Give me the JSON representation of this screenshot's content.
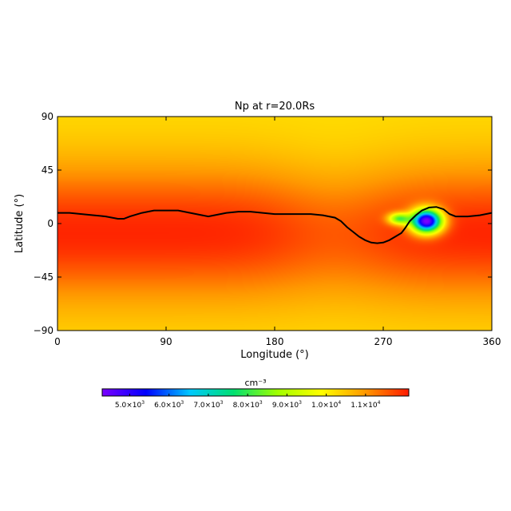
{
  "chart_data": {
    "type": "heatmap",
    "title": "Np at r=20.0Rs",
    "xlabel": "Longitude (°)",
    "ylabel": "Latitude (°)",
    "xlim": [
      0,
      360
    ],
    "ylim": [
      -90,
      90
    ],
    "xticks": [
      "0",
      "90",
      "180",
      "270",
      "360"
    ],
    "xtick_values": [
      0,
      90,
      180,
      270,
      360
    ],
    "yticks": [
      "90",
      "45",
      "0",
      "−45",
      "−90"
    ],
    "ytick_values": [
      90,
      45,
      0,
      -45,
      -90
    ],
    "colorbar": {
      "unit_label": "cm⁻³",
      "range": [
        4300,
        12100
      ],
      "tick_values": [
        5000,
        6000,
        7000,
        8000,
        9000,
        10000,
        11000
      ],
      "tick_labels": [
        {
          "mantissa": "5.0×10",
          "exp": "3"
        },
        {
          "mantissa": "6.0×10",
          "exp": "3"
        },
        {
          "mantissa": "7.0×10",
          "exp": "3"
        },
        {
          "mantissa": "8.0×10",
          "exp": "3"
        },
        {
          "mantissa": "9.0×10",
          "exp": "3"
        },
        {
          "mantissa": "1.0×10",
          "exp": "4"
        },
        {
          "mantissa": "1.1×10",
          "exp": "4"
        }
      ],
      "colors": [
        "#7a00ff",
        "#0000ff",
        "#00c8ff",
        "#00e070",
        "#a0ff00",
        "#ffff00",
        "#ff9900",
        "#ff1a00"
      ]
    },
    "background_field": {
      "peak_value": 12000,
      "pole_value": 10250,
      "peak_latitude": -8,
      "dip_center_longitude": 230,
      "dip_amount": 450
    },
    "anomalies": [
      {
        "longitude": 283,
        "latitude": 4,
        "min_value": 8600,
        "width_lon": 9,
        "width_lat": 5
      },
      {
        "longitude": 306,
        "latitude": 2,
        "min_value": 4300,
        "width_lon": 13,
        "width_lat": 10
      }
    ],
    "contour_line": {
      "color": "#000000",
      "points": [
        [
          0,
          9
        ],
        [
          10,
          9
        ],
        [
          20,
          8
        ],
        [
          30,
          7
        ],
        [
          40,
          6
        ],
        [
          50,
          4
        ],
        [
          55,
          4
        ],
        [
          60,
          6
        ],
        [
          70,
          9
        ],
        [
          80,
          11
        ],
        [
          90,
          11
        ],
        [
          100,
          11
        ],
        [
          110,
          9
        ],
        [
          120,
          7
        ],
        [
          125,
          6
        ],
        [
          130,
          7
        ],
        [
          140,
          9
        ],
        [
          150,
          10
        ],
        [
          160,
          10
        ],
        [
          170,
          9
        ],
        [
          180,
          8
        ],
        [
          190,
          8
        ],
        [
          200,
          8
        ],
        [
          210,
          8
        ],
        [
          220,
          7
        ],
        [
          230,
          5
        ],
        [
          235,
          2
        ],
        [
          240,
          -3
        ],
        [
          245,
          -7
        ],
        [
          250,
          -11
        ],
        [
          255,
          -14
        ],
        [
          260,
          -16
        ],
        [
          265,
          -16.5
        ],
        [
          270,
          -16
        ],
        [
          275,
          -14
        ],
        [
          280,
          -11
        ],
        [
          285,
          -8
        ],
        [
          288,
          -4
        ],
        [
          292,
          2
        ],
        [
          297,
          7
        ],
        [
          302,
          11
        ],
        [
          308,
          13.5
        ],
        [
          314,
          14
        ],
        [
          320,
          12
        ],
        [
          325,
          8
        ],
        [
          330,
          6
        ],
        [
          340,
          6
        ],
        [
          350,
          7
        ],
        [
          360,
          9
        ]
      ]
    }
  }
}
